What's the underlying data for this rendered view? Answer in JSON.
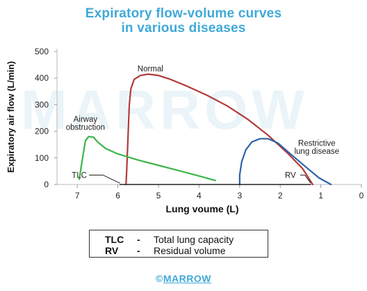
{
  "title_line1": "Expiratory flow-volume curves",
  "title_line2": "in various diseases",
  "watermark_text": "MARROW",
  "brand": {
    "symbol": "©",
    "text": "MARROW"
  },
  "legend": [
    {
      "abbr": "TLC",
      "dash": "-",
      "desc": "Total lung capacity"
    },
    {
      "abbr": "RV",
      "dash": "-",
      "desc": "Residual volume"
    }
  ],
  "chart_data": {
    "type": "line",
    "xlabel": "Lung voume (L)",
    "ylabel": "Expiratory air flow (L/min)",
    "xlim": [
      7.5,
      0
    ],
    "ylim": [
      0,
      500
    ],
    "x_ticks": [
      7,
      6,
      5,
      4,
      3,
      2,
      1,
      0
    ],
    "x_tick_labels": [
      "7",
      "6",
      "5",
      "4",
      "3",
      "2",
      "1",
      "0"
    ],
    "y_ticks": [
      0,
      100,
      200,
      300,
      400,
      500
    ],
    "y_tick_labels": [
      "0",
      "100",
      "200",
      "300",
      "400",
      "500"
    ],
    "series": [
      {
        "name": "Normal",
        "color": "#b23a3a",
        "points": [
          [
            5.8,
            0
          ],
          [
            5.78,
            60
          ],
          [
            5.75,
            180
          ],
          [
            5.72,
            300
          ],
          [
            5.68,
            360
          ],
          [
            5.6,
            395
          ],
          [
            5.45,
            410
          ],
          [
            5.25,
            415
          ],
          [
            5.0,
            410
          ],
          [
            4.7,
            395
          ],
          [
            4.3,
            370
          ],
          [
            3.8,
            335
          ],
          [
            3.3,
            295
          ],
          [
            2.8,
            245
          ],
          [
            2.3,
            185
          ],
          [
            1.8,
            115
          ],
          [
            1.45,
            60
          ],
          [
            1.2,
            0
          ]
        ]
      },
      {
        "name": "Airway obstruction",
        "color": "#3cb54a",
        "points": [
          [
            6.95,
            20
          ],
          [
            6.88,
            90
          ],
          [
            6.8,
            165
          ],
          [
            6.72,
            180
          ],
          [
            6.6,
            178
          ],
          [
            6.5,
            160
          ],
          [
            6.3,
            135
          ],
          [
            6.0,
            115
          ],
          [
            5.5,
            92
          ],
          [
            5.0,
            72
          ],
          [
            4.5,
            52
          ],
          [
            4.0,
            32
          ],
          [
            3.6,
            15
          ]
        ]
      },
      {
        "name": "Restrictive lung disease",
        "color": "#2e63a8",
        "points": [
          [
            3.0,
            0
          ],
          [
            3.0,
            35
          ],
          [
            2.95,
            85
          ],
          [
            2.85,
            130
          ],
          [
            2.7,
            160
          ],
          [
            2.5,
            172
          ],
          [
            2.3,
            172
          ],
          [
            2.05,
            155
          ],
          [
            1.75,
            115
          ],
          [
            1.4,
            70
          ],
          [
            1.05,
            25
          ],
          [
            0.75,
            0
          ]
        ]
      },
      {
        "name": "",
        "color": "#222222",
        "points": [
          [
            5.95,
            0
          ],
          [
            1.25,
            0
          ]
        ]
      }
    ],
    "annotations": [
      {
        "text": "Normal",
        "x": 5.2,
        "y": 425
      },
      {
        "text": "Airway",
        "x": 6.8,
        "y": 235
      },
      {
        "text": "obstruction",
        "x": 6.8,
        "y": 205
      },
      {
        "text": "Restrictive",
        "x": 1.1,
        "y": 145
      },
      {
        "text": "lung disease",
        "x": 1.1,
        "y": 115
      },
      {
        "text": "TLC",
        "x": 6.95,
        "y": 25,
        "arrow_to": [
          5.95,
          5
        ]
      },
      {
        "text": "RV",
        "x": 1.75,
        "y": 25,
        "arrow_to": [
          1.25,
          5
        ]
      }
    ]
  }
}
